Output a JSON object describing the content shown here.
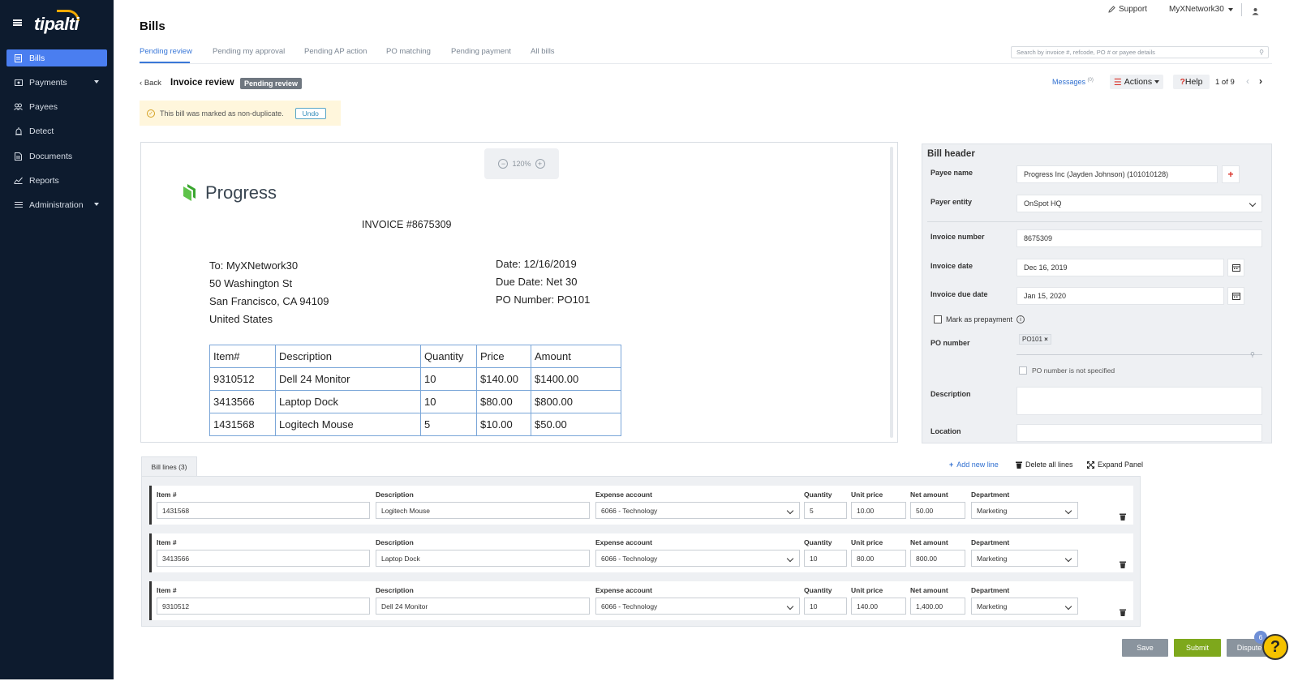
{
  "app": {
    "logo": "tipalti"
  },
  "sidebar": {
    "items": [
      {
        "label": "Bills",
        "icon": "document-icon",
        "active": true
      },
      {
        "label": "Payments",
        "icon": "payments-icon",
        "has_caret": true
      },
      {
        "label": "Payees",
        "icon": "users-icon"
      },
      {
        "label": "Detect",
        "icon": "alarm-icon"
      },
      {
        "label": "Documents",
        "icon": "file-icon"
      },
      {
        "label": "Reports",
        "icon": "chart-icon"
      },
      {
        "label": "Administration",
        "icon": "list-icon",
        "has_caret": true
      }
    ]
  },
  "topbar": {
    "support": "Support",
    "account": "MyXNetwork30"
  },
  "page": {
    "title": "Bills"
  },
  "tabs": [
    "Pending review",
    "Pending my approval",
    "Pending AP action",
    "PO matching",
    "Pending payment",
    "All bills"
  ],
  "search": {
    "placeholder": "Search by invoice #, refcode, PO # or payee details"
  },
  "review": {
    "back": "Back",
    "title": "Invoice review",
    "status": "Pending review",
    "messages": "Messages",
    "messages_count": "(0)",
    "actions": "Actions",
    "help": "Help",
    "pager": "1 of 9"
  },
  "notice": {
    "text": "This bill was marked as non-duplicate.",
    "undo": "Undo"
  },
  "document": {
    "zoom": "120%",
    "brand": "Progress",
    "invoice_title": "INVOICE #8675309",
    "to": [
      "To: MyXNetwork30",
      "50 Washington St",
      "San Francisco, CA 94109",
      "United States"
    ],
    "date": "Date: 12/16/2019",
    "due": "Due Date: Net 30",
    "po": "PO Number: PO101",
    "table": {
      "headers": [
        "Item#",
        "Description",
        "Quantity",
        "Price",
        "Amount"
      ],
      "rows": [
        [
          "9310512",
          "Dell 24 Monitor",
          "10",
          "$140.00",
          "$1400.00"
        ],
        [
          "3413566",
          "Laptop Dock",
          "10",
          "$80.00",
          "$800.00"
        ],
        [
          "1431568",
          "Logitech Mouse",
          "5",
          "$10.00",
          "$50.00"
        ]
      ]
    }
  },
  "bill_header": {
    "title": "Bill header",
    "payee_name_label": "Payee name",
    "payee_name": "Progress Inc (Jayden Johnson) (101010128)",
    "payer_entity_label": "Payer entity",
    "payer_entity": "OnSpot HQ",
    "invoice_number_label": "Invoice number",
    "invoice_number": "8675309",
    "invoice_date_label": "Invoice date",
    "invoice_date": "Dec 16, 2019",
    "due_date_label": "Invoice due date",
    "due_date": "Jan 15, 2020",
    "prepayment_label": "Mark as prepayment",
    "po_number_label": "PO number",
    "po_tag": "PO101",
    "po_not_specified": "PO number is not specified",
    "description_label": "Description",
    "location_label": "Location"
  },
  "bill_lines": {
    "tab": "Bill lines (3)",
    "add_new": "Add new line",
    "delete_all": "Delete all lines",
    "expand": "Expand Panel",
    "labels": {
      "item": "Item #",
      "description": "Description",
      "expense": "Expense account",
      "quantity": "Quantity",
      "unit_price": "Unit price",
      "net_amount": "Net amount",
      "department": "Department"
    },
    "rows": [
      {
        "item": "1431568",
        "description": "Logitech Mouse",
        "expense": "6066 - Technology",
        "quantity": "5",
        "unit_price": "10.00",
        "net_amount": "50.00",
        "department": "Marketing"
      },
      {
        "item": "3413566",
        "description": "Laptop Dock",
        "expense": "6066 - Technology",
        "quantity": "10",
        "unit_price": "80.00",
        "net_amount": "800.00",
        "department": "Marketing"
      },
      {
        "item": "9310512",
        "description": "Dell 24 Monitor",
        "expense": "6066 - Technology",
        "quantity": "10",
        "unit_price": "140.00",
        "net_amount": "1,400.00",
        "department": "Marketing"
      }
    ]
  },
  "footer": {
    "save": "Save",
    "submit": "Submit",
    "dispute": "Dispute",
    "badge": "6"
  },
  "colors": {
    "sidebar_bg": "#0d1b2e",
    "active_nav": "#4a7ef0",
    "link_blue": "#2f6fd0",
    "submit_green": "#7ea81c",
    "save_gray": "#8a949e",
    "notice_bg": "#fff6dc",
    "help_fab": "#f5c200"
  }
}
